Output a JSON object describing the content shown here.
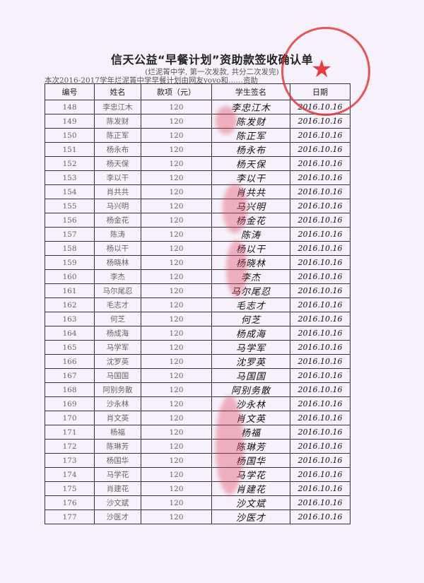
{
  "title": "信天公益“早餐计划”资助款签收确认单",
  "subtitle": "(烂泥箐中学, 第一次发款, 共分二次发完)",
  "note": "本次2016-2017学年烂泥箐中学早餐计划由网友yovo和……资助",
  "stamp_color": "#e03030",
  "headers": [
    "编号",
    "姓名",
    "款项（元）",
    "学生签名",
    "日期"
  ],
  "rows": [
    {
      "id": "148",
      "name": "李忠江木",
      "amount": "120",
      "signature": "李忠江木",
      "date": "2016.10.16"
    },
    {
      "id": "149",
      "name": "陈发财",
      "amount": "120",
      "signature": "陈发财",
      "date": "2016.10.16"
    },
    {
      "id": "150",
      "name": "陈正军",
      "amount": "120",
      "signature": "陈正军",
      "date": "2016.10.16"
    },
    {
      "id": "151",
      "name": "杨永布",
      "amount": "120",
      "signature": "杨永布",
      "date": "2016.10.16"
    },
    {
      "id": "152",
      "name": "杨天保",
      "amount": "120",
      "signature": "杨天保",
      "date": "2016.10.16"
    },
    {
      "id": "153",
      "name": "李以干",
      "amount": "120",
      "signature": "李以干",
      "date": "2016.10.16"
    },
    {
      "id": "154",
      "name": "肖共共",
      "amount": "120",
      "signature": "肖共共",
      "date": "2016.10.16"
    },
    {
      "id": "155",
      "name": "马兴明",
      "amount": "120",
      "signature": "马兴明",
      "date": "2016.10.16"
    },
    {
      "id": "156",
      "name": "杨金花",
      "amount": "120",
      "signature": "杨金花",
      "date": "2016.10.16"
    },
    {
      "id": "157",
      "name": "陈涛",
      "amount": "120",
      "signature": "陈涛",
      "date": "2016.10.16"
    },
    {
      "id": "158",
      "name": "杨以干",
      "amount": "120",
      "signature": "杨以干",
      "date": "2016.10.16"
    },
    {
      "id": "159",
      "name": "杨晓林",
      "amount": "120",
      "signature": "杨晓林",
      "date": "2016.10.16"
    },
    {
      "id": "160",
      "name": "李杰",
      "amount": "120",
      "signature": "李杰",
      "date": "2016.10.16"
    },
    {
      "id": "161",
      "name": "马尔尾忍",
      "amount": "120",
      "signature": "马尔尾忍",
      "date": "2016.10.16"
    },
    {
      "id": "162",
      "name": "毛志才",
      "amount": "120",
      "signature": "毛志才",
      "date": "2016.10.16"
    },
    {
      "id": "163",
      "name": "何芝",
      "amount": "120",
      "signature": "何芝",
      "date": "2016.10.16"
    },
    {
      "id": "164",
      "name": "杨成海",
      "amount": "120",
      "signature": "杨成海",
      "date": "2016.10.16"
    },
    {
      "id": "165",
      "name": "马学军",
      "amount": "120",
      "signature": "马学军",
      "date": "2016.10.16"
    },
    {
      "id": "166",
      "name": "沈罗英",
      "amount": "120",
      "signature": "沈罗英",
      "date": "2016.10.16"
    },
    {
      "id": "167",
      "name": "马国国",
      "amount": "120",
      "signature": "马国国",
      "date": "2016.10.16"
    },
    {
      "id": "168",
      "name": "阿别务散",
      "amount": "120",
      "signature": "阿别务散",
      "date": "2016.10.16"
    },
    {
      "id": "169",
      "name": "沙永林",
      "amount": "120",
      "signature": "沙永林",
      "date": "2016.10.16"
    },
    {
      "id": "170",
      "name": "肖文英",
      "amount": "120",
      "signature": "肖文英",
      "date": "2016.10.16"
    },
    {
      "id": "171",
      "name": "杨福",
      "amount": "120",
      "signature": "杨福",
      "date": "2016.10.16"
    },
    {
      "id": "172",
      "name": "陈琳芳",
      "amount": "120",
      "signature": "陈琳芳",
      "date": "2016.10.16"
    },
    {
      "id": "173",
      "name": "杨国华",
      "amount": "120",
      "signature": "杨国华",
      "date": "2016.10.16"
    },
    {
      "id": "174",
      "name": "马学花",
      "amount": "120",
      "signature": "马学花",
      "date": "2016.10.16"
    },
    {
      "id": "175",
      "name": "肖建花",
      "amount": "120",
      "signature": "肖建花",
      "date": "2016.10.16"
    },
    {
      "id": "176",
      "name": "沙文斌",
      "amount": "120",
      "signature": "沙文斌",
      "date": "2016.10.16"
    },
    {
      "id": "177",
      "name": "沙医才",
      "amount": "120",
      "signature": "沙医才",
      "date": "2016.10.16"
    }
  ]
}
